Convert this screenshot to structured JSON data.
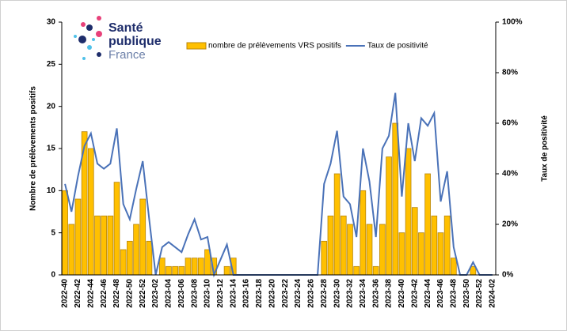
{
  "logo": {
    "lines": [
      "Santé",
      "publique",
      "France"
    ]
  },
  "chart_data": {
    "type": "bar",
    "ylabel": "Nombre de prélèvements positifs",
    "y2label": "Taux de positivité",
    "categories": [
      "2022-40",
      null,
      "2022-42",
      null,
      "2022-44",
      null,
      "2022-46",
      null,
      "2022-48",
      null,
      "2022-50",
      null,
      "2022-52",
      null,
      "2023-02",
      null,
      "2023-04",
      null,
      "2023-06",
      null,
      "2023-08",
      null,
      "2023-10",
      null,
      "2023-12",
      null,
      "2023-14",
      null,
      "2023-16",
      null,
      "2023-18",
      null,
      "2023-20",
      null,
      "2023-22",
      null,
      "2023-24",
      null,
      "2023-26",
      null,
      "2023-28",
      null,
      "2023-30",
      null,
      "2023-32",
      null,
      "2023-34",
      null,
      "2023-36",
      null,
      "2023-38",
      null,
      "2023-40",
      null,
      "2023-42",
      null,
      "2023-44",
      null,
      "2023-46",
      null,
      "2023-48",
      null,
      "2023-50",
      null,
      "2023-52",
      null,
      "2024-02"
    ],
    "series": [
      {
        "name": "nombre de prélèvements VRS positifs",
        "type": "bar",
        "color": "#ffc000",
        "values": [
          10,
          6,
          9,
          17,
          15,
          7,
          7,
          7,
          11,
          3,
          4,
          6,
          9,
          4,
          0,
          2,
          1,
          1,
          1,
          2,
          2,
          2,
          3,
          2,
          0,
          1,
          2,
          0,
          0,
          0,
          0,
          0,
          0,
          0,
          0,
          0,
          0,
          0,
          0,
          0,
          4,
          7,
          12,
          7,
          6,
          1,
          10,
          6,
          1,
          6,
          14,
          18,
          5,
          15,
          8,
          5,
          12,
          7,
          5,
          7,
          2,
          0,
          0,
          1,
          0,
          0,
          0
        ]
      },
      {
        "name": "Taux de positivité",
        "type": "line",
        "color": "#4a72b8",
        "axis": "y2",
        "values": [
          36,
          25,
          39,
          51,
          56,
          44,
          42,
          44,
          58,
          28,
          22,
          34,
          45,
          22,
          0,
          11,
          13,
          11,
          9,
          16,
          22,
          14,
          15,
          0,
          6,
          12,
          0,
          0,
          0,
          0,
          0,
          0,
          0,
          0,
          0,
          0,
          0,
          0,
          0,
          0,
          36,
          44,
          57,
          31,
          28,
          15,
          50,
          37,
          15,
          50,
          55,
          72,
          31,
          60,
          45,
          62,
          59,
          64,
          29,
          41,
          11,
          0,
          0,
          5,
          0,
          0,
          0
        ]
      }
    ],
    "ylim": [
      0,
      30
    ],
    "yticks": [
      0,
      5,
      10,
      15,
      20,
      25,
      30
    ],
    "y2lim": [
      0,
      100
    ],
    "y2ticks": [
      {
        "value": 0,
        "label": "0%"
      },
      {
        "value": 20,
        "label": "20%"
      },
      {
        "value": 40,
        "label": "40%"
      },
      {
        "value": 60,
        "label": "60%"
      },
      {
        "value": 80,
        "label": "80%"
      },
      {
        "value": 100,
        "label": "100%"
      }
    ]
  }
}
